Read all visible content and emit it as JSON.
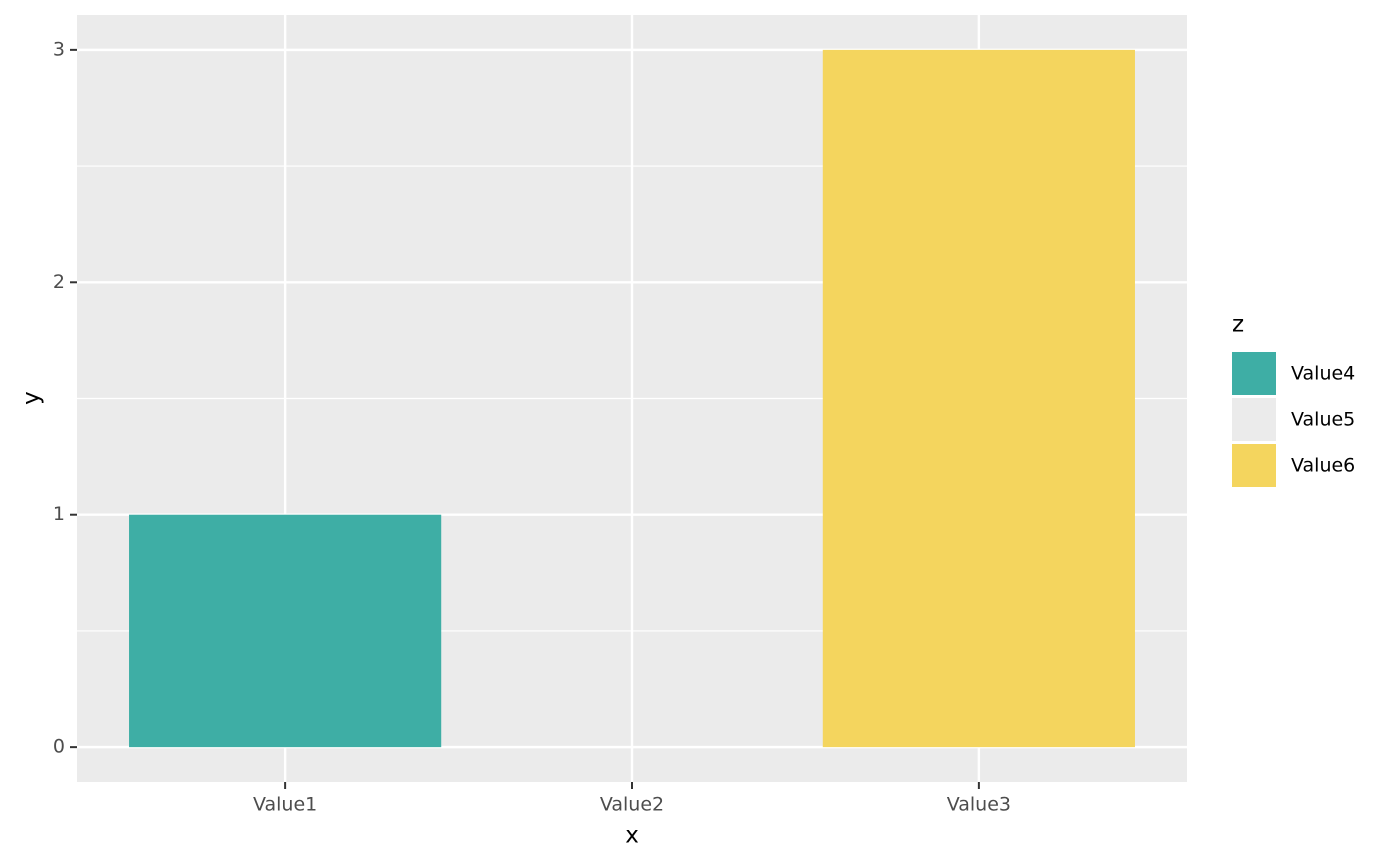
{
  "chart_data": {
    "type": "bar",
    "x_label": "x",
    "y_label": "y",
    "categories": [
      "Value1",
      "Value2",
      "Value3"
    ],
    "legend_title": "z",
    "series": [
      {
        "name": "Value4",
        "color": "#3EAEA5",
        "values": [
          1,
          null,
          null
        ]
      },
      {
        "name": "Value5",
        "color": "#EBEBEB",
        "values": [
          null,
          0,
          null
        ]
      },
      {
        "name": "Value6",
        "color": "#F4D55E",
        "values": [
          null,
          null,
          3
        ]
      }
    ],
    "ylim": [
      -0.15,
      3.15
    ],
    "yticks": [
      0,
      1,
      2,
      3
    ],
    "grid": true,
    "legend": "right"
  }
}
